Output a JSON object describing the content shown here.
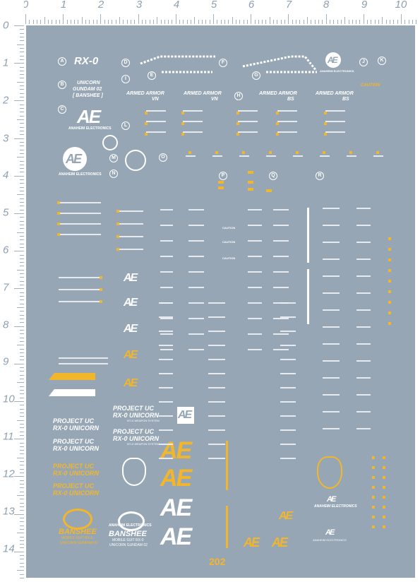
{
  "ruler": {
    "unit": "CM",
    "top_labels": [
      "0",
      "1",
      "2",
      "3",
      "4",
      "5",
      "6",
      "7",
      "8",
      "9",
      "10"
    ],
    "left_labels": [
      "0",
      "1",
      "2",
      "3",
      "4",
      "5",
      "6",
      "7",
      "8",
      "9",
      "10",
      "11",
      "12",
      "13",
      "14"
    ]
  },
  "sheet": {
    "background_color": "#96a6b5",
    "accent_yellow": "#f2b62d",
    "letters": {
      "A": "A",
      "B": "B",
      "C": "C",
      "D": "D",
      "E": "E",
      "F": "F",
      "G": "G",
      "H": "H",
      "I": "I",
      "J": "J",
      "K": "K",
      "L": "L",
      "M": "M",
      "N": "N",
      "O": "O",
      "P": "P",
      "Q": "Q",
      "R": "R"
    },
    "rx0": "RX-0",
    "unicorn_line1": "UNICORN",
    "unicorn_line2": "GUNDAM 02",
    "banshee_bracket": "[ BANSHEE ]",
    "ae_logo": "AE",
    "anaheim": "ANAHEIM ELECTRONICS",
    "armed_armor_vn_1": "ARMED ARMOR",
    "armed_armor_vn_2": "VN",
    "armed_armor_bs_1": "ARMED ARMOR",
    "armed_armor_bs_2": "BS",
    "caution": "CAUTION",
    "project_uc_1": "PROJECT UC",
    "project_uc_2": "RX-0 UNICORN",
    "ntd_system": "NT-D WEAPON SYSTEM",
    "banshee": "BANSHEE",
    "mobile_suit": "MOBILE SUIT RX-0",
    "unicorn_02": "UNICORN GUNDAM 02",
    "anaheim_big": "ANAHEIM ELECTRONICS",
    "sheet_number": "202"
  }
}
